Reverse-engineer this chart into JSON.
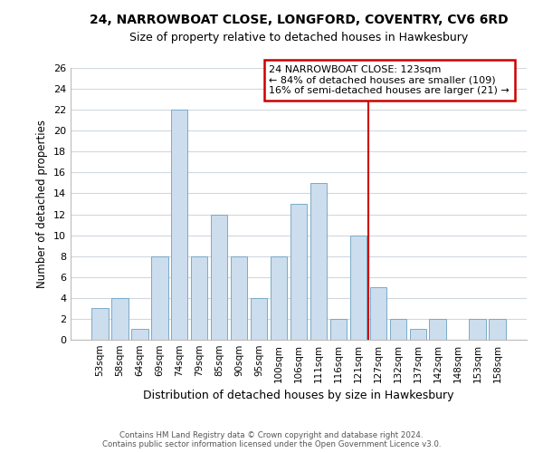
{
  "title": "24, NARROWBOAT CLOSE, LONGFORD, COVENTRY, CV6 6RD",
  "subtitle": "Size of property relative to detached houses in Hawkesbury",
  "xlabel": "Distribution of detached houses by size in Hawkesbury",
  "ylabel": "Number of detached properties",
  "bar_labels": [
    "53sqm",
    "58sqm",
    "64sqm",
    "69sqm",
    "74sqm",
    "79sqm",
    "85sqm",
    "90sqm",
    "95sqm",
    "100sqm",
    "106sqm",
    "111sqm",
    "116sqm",
    "121sqm",
    "127sqm",
    "132sqm",
    "137sqm",
    "142sqm",
    "148sqm",
    "153sqm",
    "158sqm"
  ],
  "bar_values": [
    3,
    4,
    1,
    8,
    22,
    8,
    12,
    8,
    4,
    8,
    13,
    15,
    2,
    10,
    5,
    2,
    1,
    2,
    0,
    2,
    2
  ],
  "bar_color": "#ccdded",
  "bar_edge_color": "#7aaac8",
  "highlight_line_index": 13,
  "highlight_line_color": "#cc0000",
  "ylim": [
    0,
    26
  ],
  "yticks": [
    0,
    2,
    4,
    6,
    8,
    10,
    12,
    14,
    16,
    18,
    20,
    22,
    24,
    26
  ],
  "annotation_title": "24 NARROWBOAT CLOSE: 123sqm",
  "annotation_line1": "← 84% of detached houses are smaller (109)",
  "annotation_line2": "16% of semi-detached houses are larger (21) →",
  "annotation_box_color": "#ffffff",
  "annotation_box_edge": "#cc0000",
  "footer_line1": "Contains HM Land Registry data © Crown copyright and database right 2024.",
  "footer_line2": "Contains public sector information licensed under the Open Government Licence v3.0.",
  "background_color": "#ffffff",
  "grid_color": "#d0d8e0"
}
